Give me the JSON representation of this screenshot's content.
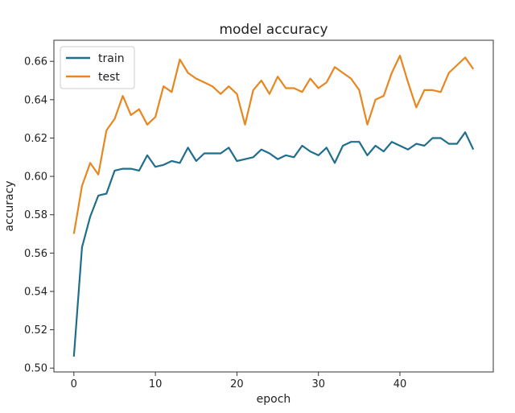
{
  "chart_data": {
    "type": "line",
    "title": "model accuracy",
    "xlabel": "epoch",
    "ylabel": "accuracy",
    "xlim": [
      -2.45,
      51.45
    ],
    "ylim": [
      0.498,
      0.671
    ],
    "xticks": [
      0,
      10,
      20,
      30,
      40
    ],
    "yticks": [
      0.5,
      0.52,
      0.54,
      0.56,
      0.58,
      0.6,
      0.62,
      0.64,
      0.66
    ],
    "grid": false,
    "legend_position": "top-left",
    "x": [
      0,
      1,
      2,
      3,
      4,
      5,
      6,
      7,
      8,
      9,
      10,
      11,
      12,
      13,
      14,
      15,
      16,
      17,
      18,
      19,
      20,
      21,
      22,
      23,
      24,
      25,
      26,
      27,
      28,
      29,
      30,
      31,
      32,
      33,
      34,
      35,
      36,
      37,
      38,
      39,
      40,
      41,
      42,
      43,
      44,
      45,
      46,
      47,
      48,
      49
    ],
    "series": [
      {
        "name": "train",
        "color": "#1f6e8c",
        "values": [
          0.506,
          0.563,
          0.579,
          0.59,
          0.591,
          0.603,
          0.604,
          0.604,
          0.603,
          0.611,
          0.605,
          0.606,
          0.608,
          0.607,
          0.615,
          0.608,
          0.612,
          0.612,
          0.612,
          0.615,
          0.608,
          0.609,
          0.61,
          0.614,
          0.612,
          0.609,
          0.611,
          0.61,
          0.616,
          0.613,
          0.611,
          0.615,
          0.607,
          0.616,
          0.618,
          0.618,
          0.611,
          0.616,
          0.613,
          0.618,
          0.616,
          0.614,
          0.617,
          0.616,
          0.62,
          0.62,
          0.617,
          0.617,
          0.623,
          0.614
        ]
      },
      {
        "name": "test",
        "color": "#e8861f",
        "values": [
          0.57,
          0.595,
          0.607,
          0.601,
          0.624,
          0.63,
          0.642,
          0.632,
          0.635,
          0.627,
          0.631,
          0.647,
          0.644,
          0.661,
          0.654,
          0.651,
          0.649,
          0.647,
          0.643,
          0.647,
          0.643,
          0.627,
          0.645,
          0.65,
          0.643,
          0.652,
          0.646,
          0.646,
          0.644,
          0.651,
          0.646,
          0.649,
          0.657,
          0.654,
          0.651,
          0.645,
          0.627,
          0.64,
          0.642,
          0.654,
          0.663,
          0.649,
          0.636,
          0.645,
          0.645,
          0.644,
          0.654,
          0.658,
          0.662,
          0.656
        ]
      }
    ]
  }
}
